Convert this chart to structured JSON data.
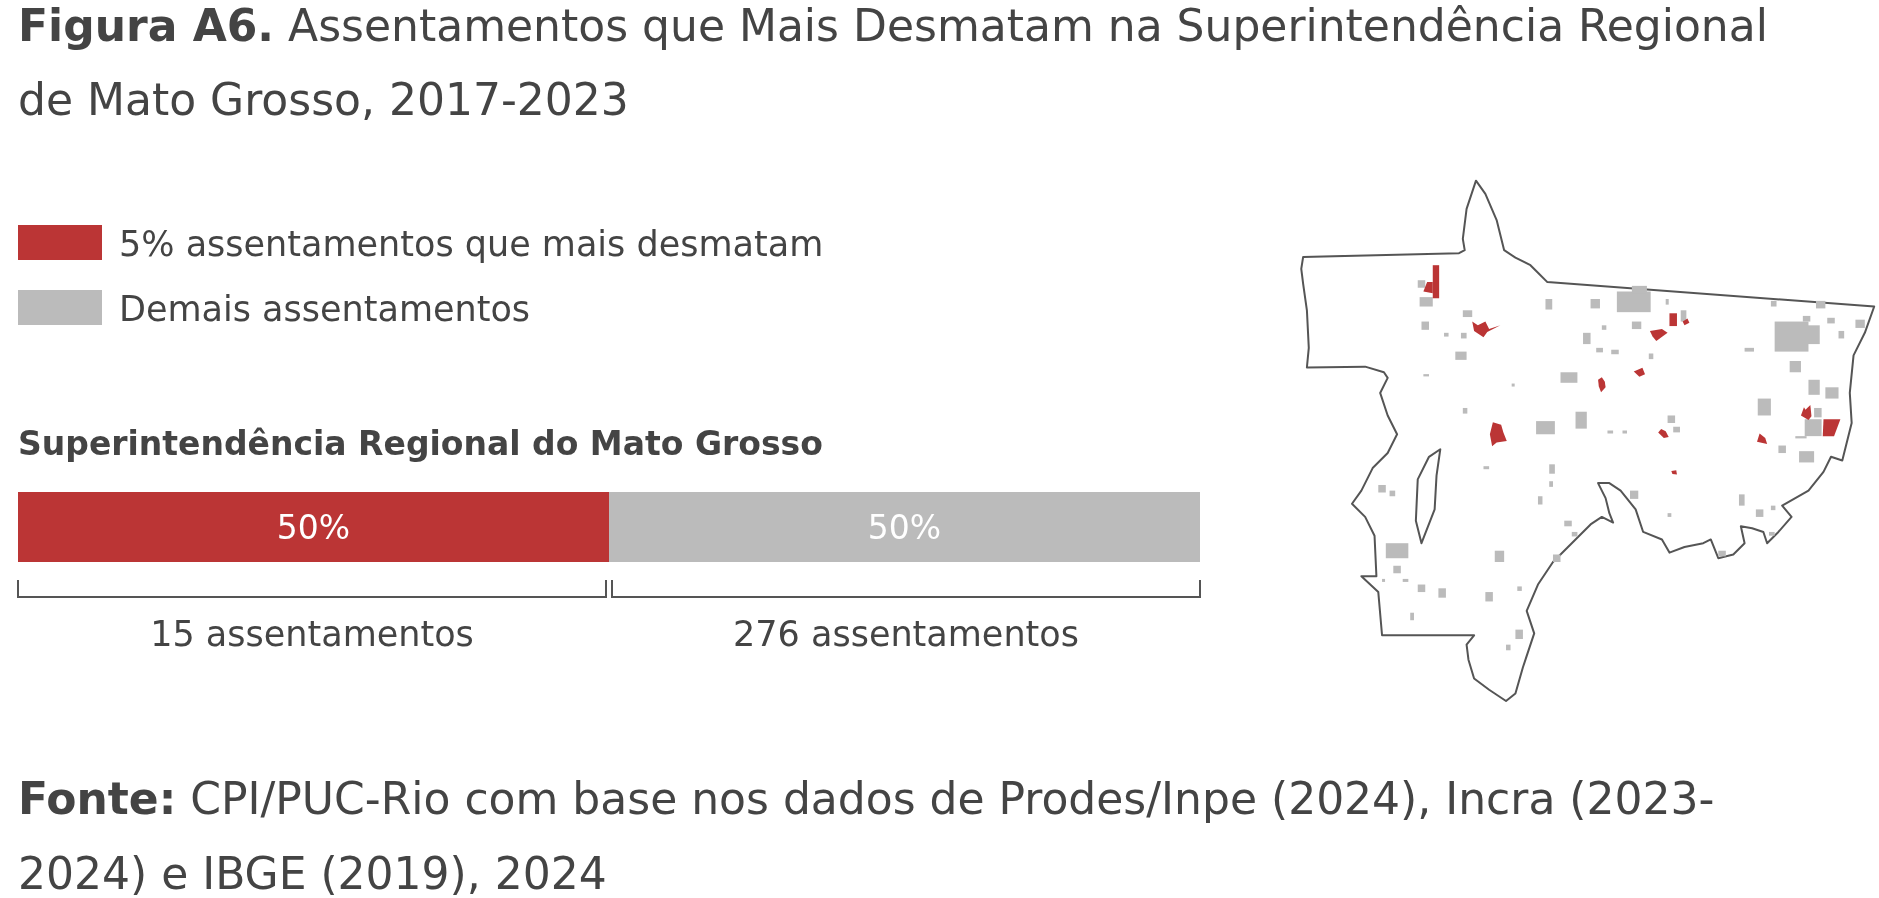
{
  "chart_data": {
    "type": "bar",
    "orientation": "horizontal",
    "stacked": true,
    "title": "Figura A6. Assentamentos que Mais Desmatam na Superintendência Regional de Mato Grosso, 2017-2023",
    "categories": [
      "Superintendência Regional do Mato Grosso"
    ],
    "series": [
      {
        "name": "5% assentamentos que mais desmatam",
        "color": "#bb3535",
        "values": [
          50
        ],
        "value_labels": [
          "50%"
        ]
      },
      {
        "name": "Demais assentamentos",
        "color": "#bbbbbb",
        "values": [
          50
        ],
        "value_labels": [
          "50%"
        ]
      }
    ],
    "legend": "top left",
    "annotations": [
      "15 assentamentos",
      "276 assentamentos",
      "Fonte: CPI/PUC-Rio com base nos dados de Prodes/Inpe (2024), Incra (2023-2024) e IBGE (2019), 2024"
    ]
  }
}
